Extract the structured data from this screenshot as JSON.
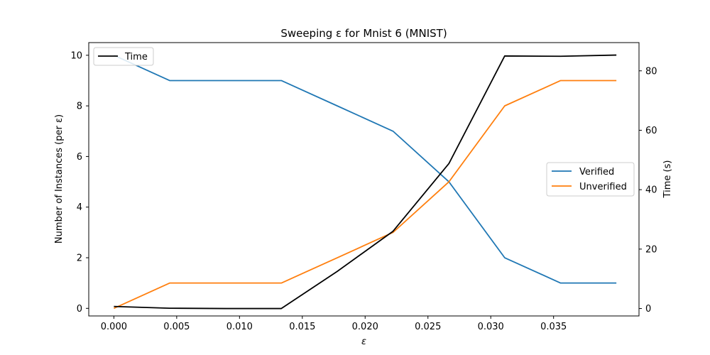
{
  "chart_data": {
    "type": "line",
    "title": "Sweeping ε for Mnist 6 (MNIST)",
    "xlabel": "ε",
    "ylabel_left": "Number of Instances (per ε)",
    "ylabel_right": "Time (s)",
    "xlim": [
      -0.002,
      0.0418
    ],
    "ylim_left": [
      -0.3,
      10.5
    ],
    "ylim_right": [
      -2.5,
      89.5
    ],
    "x_ticks": [
      "0.000",
      "0.005",
      "0.010",
      "0.015",
      "0.020",
      "0.025",
      "0.030",
      "0.035"
    ],
    "y_ticks_left": [
      "0",
      "2",
      "4",
      "6",
      "8",
      "10"
    ],
    "y_ticks_right": [
      "0",
      "20",
      "40",
      "60",
      "80"
    ],
    "grid": false,
    "x": [
      0.0,
      0.00444,
      0.00889,
      0.01333,
      0.01778,
      0.02222,
      0.02667,
      0.03111,
      0.03556,
      0.04
    ],
    "series": [
      {
        "name": "Verified",
        "axis": "left",
        "color": "#1f77b4",
        "values": [
          10,
          9,
          9,
          9,
          8,
          7,
          5,
          2,
          1,
          1
        ]
      },
      {
        "name": "Unverified",
        "axis": "left",
        "color": "#ff7f0e",
        "values": [
          0,
          1,
          1,
          1,
          2,
          3,
          5,
          8,
          9,
          9
        ]
      },
      {
        "name": "Time",
        "axis": "right",
        "color": "#000000",
        "values": [
          0.7,
          0.1,
          0.0,
          0.0,
          12.5,
          26,
          48.8,
          85,
          84.9,
          85.3
        ]
      }
    ],
    "legends": [
      {
        "position": "upper-left",
        "entries": [
          "Time"
        ]
      },
      {
        "position": "center-right",
        "entries": [
          "Verified",
          "Unverified"
        ]
      }
    ]
  }
}
